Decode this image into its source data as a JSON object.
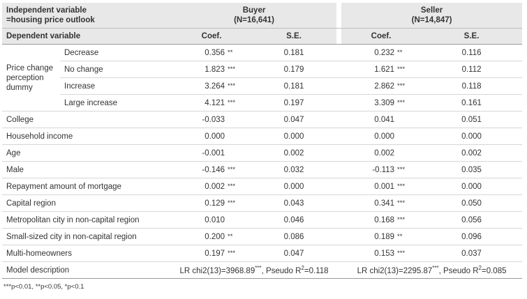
{
  "header": {
    "indep_line1": "Independent variable",
    "indep_line2": "=housing price outlook",
    "buyer_label": "Buyer",
    "buyer_n": "(N=16,641)",
    "seller_label": "Seller",
    "seller_n": "(N=14,847)",
    "dep_label": "Dependent variable",
    "coef_label": "Coef.",
    "se_label": "S.E."
  },
  "price_change_label": "Price change perception dummy",
  "rows": [
    {
      "label": "Decrease",
      "buyer_coef": "0.356",
      "buyer_sig": "**",
      "buyer_se": "0.181",
      "seller_coef": "0.232",
      "seller_sig": "**",
      "seller_se": "0.116"
    },
    {
      "label": "No change",
      "buyer_coef": "1.823",
      "buyer_sig": "***",
      "buyer_se": "0.179",
      "seller_coef": "1.621",
      "seller_sig": "***",
      "seller_se": "0.112"
    },
    {
      "label": "Increase",
      "buyer_coef": "3.264",
      "buyer_sig": "***",
      "buyer_se": "0.181",
      "seller_coef": "2.862",
      "seller_sig": "***",
      "seller_se": "0.118"
    },
    {
      "label": "Large increase",
      "buyer_coef": "4.121",
      "buyer_sig": "***",
      "buyer_se": "0.197",
      "seller_coef": "3.309",
      "seller_sig": "***",
      "seller_se": "0.161"
    },
    {
      "label": "College",
      "buyer_coef": "-0.033",
      "buyer_sig": "",
      "buyer_se": "0.047",
      "seller_coef": "0.041",
      "seller_sig": "",
      "seller_se": "0.051"
    },
    {
      "label": "Household income",
      "buyer_coef": "0.000",
      "buyer_sig": "",
      "buyer_se": "0.000",
      "seller_coef": "0.000",
      "seller_sig": "",
      "seller_se": "0.000"
    },
    {
      "label": "Age",
      "buyer_coef": "-0.001",
      "buyer_sig": "",
      "buyer_se": "0.002",
      "seller_coef": "0.002",
      "seller_sig": "",
      "seller_se": "0.002"
    },
    {
      "label": "Male",
      "buyer_coef": "-0.146",
      "buyer_sig": "***",
      "buyer_se": "0.032",
      "seller_coef": "-0.113",
      "seller_sig": "***",
      "seller_se": "0.035"
    },
    {
      "label": "Repayment amount of mortgage",
      "buyer_coef": "0.002",
      "buyer_sig": "***",
      "buyer_se": "0.000",
      "seller_coef": "0.001",
      "seller_sig": "***",
      "seller_se": "0.000"
    },
    {
      "label": "Capital region",
      "buyer_coef": "0.129",
      "buyer_sig": "***",
      "buyer_se": "0.043",
      "seller_coef": "0.341",
      "seller_sig": "***",
      "seller_se": "0.050"
    },
    {
      "label": "Metropolitan city in non-capital region",
      "buyer_coef": "0.010",
      "buyer_sig": "",
      "buyer_se": "0.046",
      "seller_coef": "0.168",
      "seller_sig": "***",
      "seller_se": "0.056"
    },
    {
      "label": "Small-sized city in non-capital region",
      "buyer_coef": "0.200",
      "buyer_sig": "**",
      "buyer_se": "0.086",
      "seller_coef": "0.189",
      "seller_sig": "**",
      "seller_se": "0.096"
    },
    {
      "label": "Multi-homeowners",
      "buyer_coef": "0.197",
      "buyer_sig": "***",
      "buyer_se": "0.047",
      "seller_coef": "0.153",
      "seller_sig": "***",
      "seller_se": "0.037"
    }
  ],
  "model": {
    "label": "Model description",
    "buyer_a": "LR chi2(13)=3968.89",
    "buyer_stars": "***",
    "buyer_b": ", Pseudo R",
    "buyer_sup": "2",
    "buyer_c": "=0.118",
    "seller_a": "LR chi2(13)=2295.87",
    "seller_stars": "***",
    "seller_b": ", Pseudo R",
    "seller_sup": "2",
    "seller_c": "=0.085"
  },
  "footnote": "***p<0.01, **p<0.05, *p<0.1"
}
